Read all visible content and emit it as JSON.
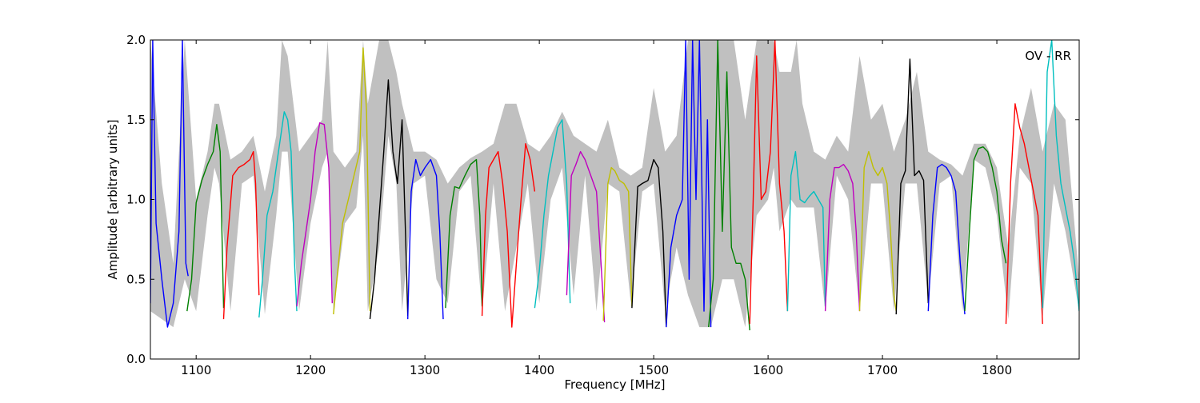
{
  "chart_data": {
    "type": "line",
    "title": "",
    "annotation": "OV - RR",
    "xlabel": "Frequency [MHz]",
    "ylabel": "Amplitude [arbitrary units]",
    "xlim": [
      1060,
      1872
    ],
    "ylim": [
      0.0,
      2.0
    ],
    "xticks": [
      1100,
      1200,
      1300,
      1400,
      1500,
      1600,
      1700,
      1800
    ],
    "yticks": [
      0.0,
      0.5,
      1.0,
      1.5,
      2.0
    ],
    "ytick_labels": [
      "0.0",
      "0.5",
      "1.0",
      "1.5",
      "2.0"
    ],
    "grid": false,
    "legend": "none",
    "envelope_color": "#c0c0c0",
    "series_colors": [
      "#0000ff",
      "#008000",
      "#ff0000",
      "#00bfbf",
      "#bf00bf",
      "#bfbf00",
      "#000000"
    ],
    "bands": [
      {
        "color": "#0000ff",
        "x": [
          1060,
          1062,
          1065,
          1070,
          1075,
          1080,
          1085,
          1088,
          1091,
          1093
        ],
        "y": [
          0.35,
          2.0,
          0.85,
          0.5,
          0.2,
          0.35,
          0.8,
          2.0,
          0.6,
          0.52
        ]
      },
      {
        "color": "#008000",
        "x": [
          1092,
          1096,
          1100,
          1105,
          1110,
          1115,
          1118,
          1121,
          1124
        ],
        "y": [
          0.3,
          0.5,
          0.98,
          1.12,
          1.22,
          1.3,
          1.47,
          1.3,
          0.32
        ]
      },
      {
        "color": "#ff0000",
        "x": [
          1124,
          1127,
          1132,
          1137,
          1142,
          1147,
          1150,
          1152,
          1155
        ],
        "y": [
          0.25,
          0.7,
          1.15,
          1.2,
          1.22,
          1.25,
          1.3,
          1.1,
          0.4
        ]
      },
      {
        "color": "#00bfbf",
        "x": [
          1155,
          1158,
          1162,
          1167,
          1172,
          1177,
          1180,
          1183,
          1186,
          1188
        ],
        "y": [
          0.26,
          0.5,
          0.9,
          1.05,
          1.3,
          1.55,
          1.5,
          1.3,
          0.6,
          0.3
        ]
      },
      {
        "color": "#bf00bf",
        "x": [
          1188,
          1192,
          1196,
          1200,
          1204,
          1208,
          1212,
          1216,
          1219
        ],
        "y": [
          0.33,
          0.6,
          0.8,
          1.0,
          1.3,
          1.48,
          1.47,
          1.2,
          0.35
        ]
      },
      {
        "color": "#bfbf00",
        "x": [
          1220,
          1223,
          1228,
          1233,
          1238,
          1243,
          1246,
          1249,
          1252
        ],
        "y": [
          0.28,
          0.5,
          0.85,
          1.0,
          1.15,
          1.3,
          1.95,
          1.55,
          0.3
        ]
      },
      {
        "color": "#000000",
        "x": [
          1252,
          1256,
          1260,
          1264,
          1268,
          1272,
          1276,
          1280,
          1283,
          1285
        ],
        "y": [
          0.25,
          0.5,
          0.9,
          1.3,
          1.75,
          1.3,
          1.1,
          1.5,
          0.8,
          0.27
        ]
      },
      {
        "color": "#0000ff",
        "x": [
          1285,
          1288,
          1292,
          1296,
          1300,
          1305,
          1310,
          1313,
          1316
        ],
        "y": [
          0.25,
          1.05,
          1.25,
          1.15,
          1.2,
          1.25,
          1.15,
          0.8,
          0.25
        ]
      },
      {
        "color": "#008000",
        "x": [
          1318,
          1322,
          1326,
          1330,
          1335,
          1340,
          1345,
          1348,
          1350
        ],
        "y": [
          0.32,
          0.9,
          1.08,
          1.07,
          1.15,
          1.22,
          1.25,
          0.9,
          0.33
        ]
      },
      {
        "color": "#ff0000",
        "x": [
          1350,
          1353,
          1356,
          1360,
          1364,
          1368,
          1372,
          1376,
          1380,
          1384,
          1388,
          1392,
          1396
        ],
        "y": [
          0.27,
          0.9,
          1.2,
          1.25,
          1.3,
          1.1,
          0.8,
          0.2,
          0.6,
          1.0,
          1.35,
          1.25,
          1.05
        ]
      },
      {
        "color": "#00bfbf",
        "x": [
          1396,
          1400,
          1404,
          1408,
          1412,
          1416,
          1420,
          1424,
          1427
        ],
        "y": [
          0.32,
          0.55,
          0.9,
          1.15,
          1.3,
          1.45,
          1.5,
          1.1,
          0.35
        ]
      },
      {
        "color": "#bf00bf",
        "x": [
          1424,
          1428,
          1432,
          1436,
          1440,
          1445,
          1450,
          1454,
          1457
        ],
        "y": [
          0.4,
          1.15,
          1.22,
          1.3,
          1.25,
          1.15,
          1.05,
          0.6,
          0.23
        ]
      },
      {
        "color": "#bfbf00",
        "x": [
          1456,
          1460,
          1463,
          1466,
          1470,
          1474,
          1478,
          1481
        ],
        "y": [
          0.24,
          1.1,
          1.2,
          1.18,
          1.12,
          1.1,
          1.05,
          0.33
        ]
      },
      {
        "color": "#000000",
        "x": [
          1481,
          1486,
          1490,
          1495,
          1500,
          1504,
          1508,
          1511
        ],
        "y": [
          0.32,
          1.08,
          1.1,
          1.12,
          1.25,
          1.2,
          0.8,
          0.2
        ]
      },
      {
        "color": "#0000ff",
        "x": [
          1511,
          1515,
          1520,
          1525,
          1528,
          1531,
          1534,
          1537,
          1540,
          1544,
          1547,
          1550
        ],
        "y": [
          0.2,
          0.7,
          0.9,
          1.0,
          2.0,
          0.5,
          2.0,
          1.0,
          2.0,
          0.3,
          1.5,
          0.2
        ]
      },
      {
        "color": "#008000",
        "x": [
          1548,
          1552,
          1556,
          1560,
          1564,
          1568,
          1572,
          1576,
          1580,
          1584
        ],
        "y": [
          0.2,
          0.5,
          2.0,
          0.8,
          1.8,
          0.7,
          0.6,
          0.6,
          0.5,
          0.18
        ]
      },
      {
        "color": "#ff0000",
        "x": [
          1584,
          1587,
          1590,
          1594,
          1598,
          1602,
          1606,
          1610,
          1614,
          1617
        ],
        "y": [
          0.22,
          1.0,
          1.9,
          1.0,
          1.05,
          1.3,
          2.0,
          1.1,
          0.8,
          0.3
        ]
      },
      {
        "color": "#00bfbf",
        "x": [
          1617,
          1620,
          1624,
          1628,
          1632,
          1636,
          1640,
          1644,
          1648,
          1650
        ],
        "y": [
          0.3,
          1.15,
          1.3,
          1.0,
          0.98,
          1.02,
          1.05,
          1.0,
          0.95,
          0.33
        ]
      },
      {
        "color": "#bf00bf",
        "x": [
          1650,
          1654,
          1658,
          1662,
          1666,
          1670,
          1674,
          1677,
          1680
        ],
        "y": [
          0.3,
          1.0,
          1.2,
          1.2,
          1.22,
          1.18,
          1.1,
          0.8,
          0.3
        ]
      },
      {
        "color": "#bfbf00",
        "x": [
          1680,
          1684,
          1688,
          1692,
          1696,
          1700,
          1704,
          1707,
          1710,
          1712
        ],
        "y": [
          0.3,
          1.2,
          1.3,
          1.2,
          1.15,
          1.2,
          1.1,
          0.8,
          0.4,
          0.3
        ]
      },
      {
        "color": "#000000",
        "x": [
          1712,
          1716,
          1720,
          1724,
          1728,
          1732,
          1736,
          1740
        ],
        "y": [
          0.28,
          1.1,
          1.18,
          1.88,
          1.15,
          1.18,
          1.12,
          0.35
        ]
      },
      {
        "color": "#0000ff",
        "x": [
          1740,
          1744,
          1748,
          1752,
          1756,
          1760,
          1764,
          1768,
          1772
        ],
        "y": [
          0.3,
          0.9,
          1.2,
          1.22,
          1.2,
          1.15,
          1.05,
          0.6,
          0.28
        ]
      },
      {
        "color": "#008000",
        "x": [
          1772,
          1776,
          1780,
          1784,
          1788,
          1792,
          1796,
          1800,
          1804,
          1808
        ],
        "y": [
          0.3,
          0.8,
          1.25,
          1.32,
          1.33,
          1.3,
          1.2,
          1.05,
          0.75,
          0.6
        ]
      },
      {
        "color": "#ff0000",
        "x": [
          1808,
          1812,
          1816,
          1820,
          1824,
          1828,
          1832,
          1836,
          1840
        ],
        "y": [
          0.22,
          1.1,
          1.6,
          1.45,
          1.35,
          1.2,
          1.05,
          0.9,
          0.22
        ]
      },
      {
        "color": "#00bfbf",
        "x": [
          1840,
          1844,
          1848,
          1852,
          1856,
          1860,
          1864,
          1868,
          1872
        ],
        "y": [
          0.32,
          1.8,
          2.0,
          1.4,
          1.1,
          0.95,
          0.8,
          0.6,
          0.3
        ]
      }
    ],
    "envelope": {
      "x": [
        1060,
        1070,
        1080,
        1090,
        1100,
        1110,
        1116,
        1120,
        1130,
        1140,
        1150,
        1160,
        1170,
        1175,
        1180,
        1190,
        1200,
        1210,
        1215,
        1220,
        1230,
        1240,
        1246,
        1250,
        1260,
        1268,
        1275,
        1280,
        1290,
        1300,
        1310,
        1320,
        1330,
        1340,
        1350,
        1360,
        1370,
        1380,
        1390,
        1400,
        1410,
        1420,
        1430,
        1440,
        1450,
        1460,
        1470,
        1480,
        1490,
        1500,
        1510,
        1520,
        1530,
        1540,
        1550,
        1560,
        1570,
        1580,
        1590,
        1600,
        1605,
        1610,
        1620,
        1625,
        1630,
        1640,
        1650,
        1660,
        1670,
        1680,
        1690,
        1700,
        1710,
        1720,
        1730,
        1740,
        1750,
        1760,
        1770,
        1780,
        1790,
        1800,
        1810,
        1820,
        1830,
        1840,
        1850,
        1860,
        1872
      ],
      "upper": [
        2.0,
        1.1,
        0.6,
        2.0,
        1.0,
        1.3,
        1.6,
        1.6,
        1.25,
        1.3,
        1.4,
        1.05,
        1.4,
        2.0,
        1.9,
        1.3,
        1.4,
        1.5,
        2.0,
        1.3,
        1.2,
        1.3,
        2.0,
        1.6,
        2.0,
        2.0,
        1.8,
        1.6,
        1.3,
        1.3,
        1.25,
        1.1,
        1.2,
        1.26,
        1.3,
        1.35,
        1.6,
        1.6,
        1.35,
        1.3,
        1.4,
        1.55,
        1.4,
        1.35,
        1.3,
        1.5,
        1.2,
        1.15,
        1.2,
        1.7,
        1.3,
        1.4,
        2.0,
        2.0,
        2.0,
        2.0,
        2.0,
        1.5,
        2.0,
        2.0,
        2.0,
        1.8,
        1.8,
        2.0,
        1.6,
        1.3,
        1.25,
        1.4,
        1.3,
        1.9,
        1.5,
        1.6,
        1.3,
        1.5,
        1.8,
        1.3,
        1.25,
        1.22,
        1.15,
        1.35,
        1.35,
        1.2,
        0.7,
        1.4,
        1.7,
        1.3,
        1.6,
        1.5,
        0.5
      ],
      "lower": [
        0.3,
        0.25,
        0.2,
        0.5,
        0.3,
        0.9,
        1.2,
        1.1,
        0.3,
        1.1,
        1.15,
        0.28,
        0.9,
        1.3,
        1.3,
        0.3,
        0.85,
        1.2,
        1.3,
        0.3,
        0.85,
        0.95,
        1.4,
        0.3,
        0.7,
        1.4,
        1.1,
        0.3,
        1.1,
        1.15,
        0.5,
        0.35,
        1.05,
        1.15,
        0.3,
        1.1,
        0.3,
        0.7,
        1.1,
        0.35,
        1.0,
        1.2,
        0.4,
        1.15,
        0.3,
        1.1,
        1.05,
        0.35,
        1.05,
        1.1,
        0.3,
        0.7,
        0.4,
        0.2,
        0.2,
        0.5,
        0.5,
        0.2,
        0.9,
        1.0,
        1.2,
        0.8,
        1.0,
        0.95,
        0.95,
        0.95,
        0.3,
        1.15,
        1.0,
        0.3,
        1.1,
        1.1,
        0.3,
        1.1,
        1.1,
        0.35,
        1.1,
        1.15,
        0.3,
        1.25,
        1.2,
        0.9,
        0.25,
        1.2,
        1.1,
        0.25,
        1.1,
        0.8,
        0.3
      ]
    }
  }
}
